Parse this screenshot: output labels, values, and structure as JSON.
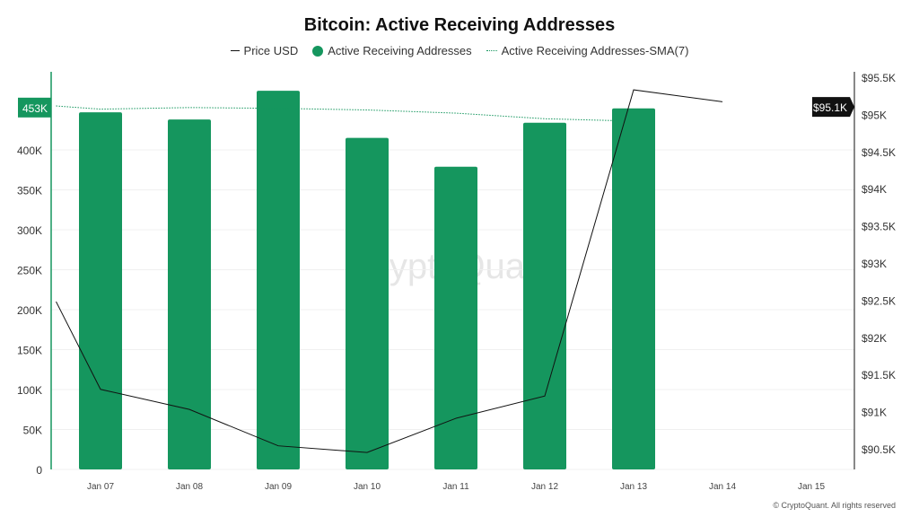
{
  "chart_data": {
    "type": "bar",
    "title": "Bitcoin: Active Receiving Addresses",
    "categories": [
      "Jan 07",
      "Jan 08",
      "Jan 09",
      "Jan 10",
      "Jan 11",
      "Jan 12",
      "Jan 13",
      "Jan 14",
      "Jan 15"
    ],
    "series": [
      {
        "name": "Active Receiving Addresses",
        "type": "bar",
        "axis": "left",
        "color": "#15965e",
        "values": [
          447000,
          438000,
          474000,
          415000,
          379000,
          434000,
          452000,
          null,
          null
        ]
      },
      {
        "name": "Active Receiving Addresses-SMA(7)",
        "type": "line",
        "style": "dotted",
        "axis": "left",
        "color": "#15965e",
        "x": [
          -0.5,
          0,
          1,
          2,
          3,
          4,
          5,
          6
        ],
        "values": [
          455000,
          451000,
          453000,
          452000,
          450000,
          446000,
          439000,
          436000
        ]
      },
      {
        "name": "Price USD",
        "type": "line",
        "axis": "right",
        "color": "#111111",
        "x": [
          -0.5,
          0,
          1,
          2,
          3,
          4,
          5,
          6,
          7
        ],
        "values": [
          92480,
          91300,
          91030,
          90540,
          90450,
          90910,
          91210,
          95330,
          95170
        ]
      }
    ],
    "left_axis": {
      "ticks": [
        "0",
        "50K",
        "100K",
        "150K",
        "200K",
        "250K",
        "300K",
        "350K",
        "400K"
      ],
      "range": [
        0,
        500000
      ],
      "current_label": "453K",
      "current_value": 453000
    },
    "right_axis": {
      "ticks": [
        "$90.5K",
        "$91K",
        "$91.5K",
        "$92K",
        "$92.5K",
        "$93K",
        "$93.5K",
        "$94K",
        "$94.5K",
        "$95K",
        "$95.5K"
      ],
      "range": [
        90500,
        95500
      ],
      "current_label": "$95.1K",
      "current_value": 95100
    },
    "legend_placement": "top",
    "grid": "horizontal",
    "watermark": "CryptoQuant"
  },
  "legend": [
    "Price USD",
    "Active Receiving Addresses",
    "Active Receiving Addresses-SMA(7)"
  ],
  "copyright": "© CryptoQuant. All rights reserved"
}
